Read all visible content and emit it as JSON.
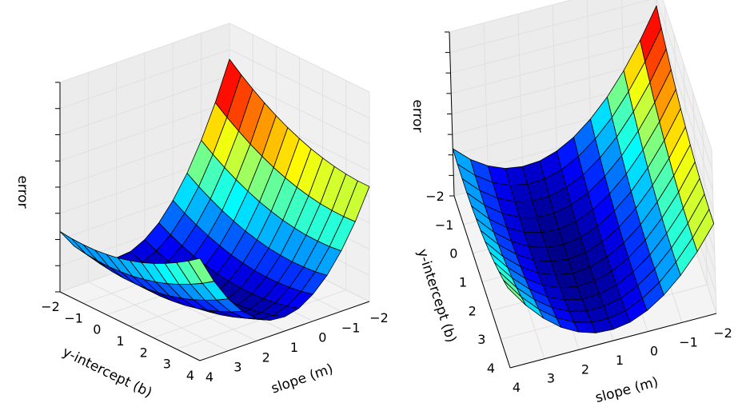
{
  "chart_data": {
    "type": "surface",
    "colormap": "jet",
    "edge_color": "#000000",
    "pane_color": "#f2f2f2",
    "grid_color": "#e0e0e0",
    "grid": true,
    "m": [
      -2,
      -1.5,
      -1,
      -0.5,
      0,
      0.5,
      1,
      1.5,
      2,
      2.5,
      3,
      3.5,
      4
    ],
    "b": [
      -2,
      -1.5,
      -1,
      -0.5,
      0,
      0.5,
      1,
      1.5,
      2,
      2.5,
      3,
      3.5,
      4
    ],
    "z": [
      [
        49.7,
        46.9,
        44.4,
        42.1,
        40.1,
        38.3,
        36.8,
        35.5,
        34.5,
        33.7,
        33.2,
        32.9,
        32.9
      ],
      [
        38.7,
        36.1,
        33.8,
        31.7,
        29.9,
        28.3,
        27.0,
        25.9,
        25.1,
        24.5,
        24.2,
        24.1,
        24.3
      ],
      [
        29.3,
        26.9,
        24.8,
        22.9,
        21.3,
        19.9,
        18.8,
        17.9,
        17.3,
        16.9,
        16.8,
        16.9,
        17.3
      ],
      [
        21.3,
        19.1,
        17.2,
        15.5,
        14.1,
        12.9,
        12.0,
        11.3,
        10.9,
        10.7,
        10.8,
        11.1,
        11.7
      ],
      [
        14.9,
        12.9,
        11.2,
        9.7,
        8.5,
        7.5,
        6.8,
        6.3,
        6.1,
        6.1,
        6.4,
        6.9,
        7.7
      ],
      [
        9.9,
        8.1,
        6.6,
        5.3,
        4.3,
        3.5,
        3.0,
        2.7,
        2.7,
        2.9,
        3.4,
        4.1,
        5.1
      ],
      [
        6.5,
        4.9,
        3.6,
        2.5,
        1.7,
        1.1,
        0.8,
        0.7,
        0.9,
        1.3,
        2.0,
        2.9,
        4.1
      ],
      [
        4.5,
        3.1,
        2.0,
        1.1,
        0.5,
        0.1,
        0.0,
        0.1,
        0.5,
        1.1,
        2.0,
        3.1,
        4.5
      ],
      [
        4.1,
        2.9,
        2.0,
        1.3,
        0.9,
        0.7,
        0.8,
        1.1,
        1.7,
        2.5,
        3.6,
        4.9,
        6.5
      ],
      [
        5.1,
        4.1,
        3.4,
        2.9,
        2.7,
        2.7,
        3.0,
        3.5,
        4.3,
        5.3,
        6.6,
        8.1,
        9.9
      ],
      [
        7.7,
        6.9,
        6.4,
        6.1,
        6.1,
        6.3,
        6.8,
        7.5,
        8.5,
        9.7,
        11.2,
        12.9,
        14.9
      ],
      [
        11.7,
        11.1,
        10.8,
        10.7,
        10.9,
        11.3,
        12.0,
        12.9,
        14.1,
        15.5,
        17.2,
        19.1,
        21.3
      ],
      [
        17.3,
        16.9,
        16.8,
        16.9,
        17.3,
        17.9,
        18.8,
        19.9,
        21.3,
        22.9,
        24.8,
        26.9,
        29.3
      ]
    ],
    "xlim": [
      -2,
      4
    ],
    "ylim": [
      -2,
      4
    ],
    "zlim": [
      0,
      60
    ],
    "subplots": [
      {
        "xlabel": "slope (m)",
        "ylabel": "y-intercept (b)",
        "zlabel": "error",
        "x_ticks": [
          "4",
          "3",
          "2",
          "1",
          "0",
          "−1",
          "−2"
        ],
        "y_ticks": [
          "−2",
          "−1",
          "0",
          "1",
          "2",
          "3",
          "4"
        ],
        "z_tick_labels_shown": false
      },
      {
        "xlabel": "slope (m)",
        "ylabel": "y-intercept (b)",
        "zlabel": "error",
        "x_ticks": [
          "4",
          "3",
          "2",
          "1",
          "0",
          "−1",
          "−2"
        ],
        "y_ticks": [
          "−2",
          "−1",
          "0",
          "1",
          "2",
          "3",
          "4"
        ],
        "z_tick_labels_shown": false
      }
    ]
  }
}
